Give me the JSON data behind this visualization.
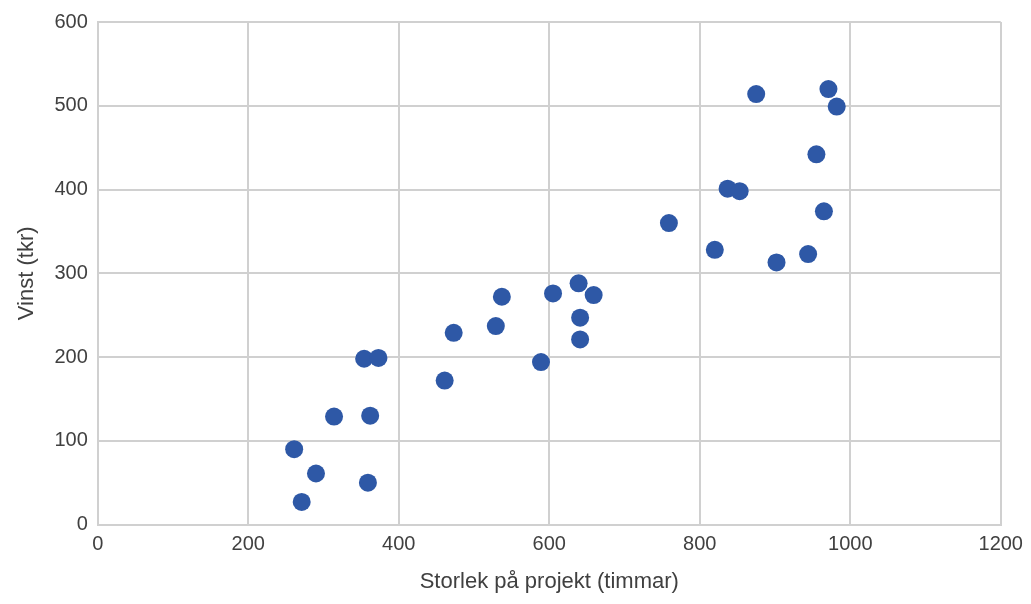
{
  "chart_data": {
    "type": "scatter",
    "xlabel": "Storlek på projekt (timmar)",
    "ylabel": "Vinst (tkr)",
    "x": [
      261,
      271,
      290,
      314,
      354,
      373,
      362,
      359,
      461,
      473,
      529,
      537,
      589,
      605,
      639,
      641,
      641,
      659,
      759,
      820,
      837,
      853,
      875,
      902,
      944,
      955,
      965,
      971,
      982
    ],
    "series": [
      {
        "color": "#2e58a6",
        "values": [
          90,
          27,
          61,
          129,
          198,
          199,
          130,
          50,
          172,
          229,
          237,
          272,
          194,
          276,
          288,
          247,
          221,
          274,
          360,
          328,
          401,
          398,
          514,
          313,
          323,
          442,
          374,
          520,
          499
        ]
      }
    ],
    "xlim": [
      0,
      1200
    ],
    "xticks": [
      0,
      200,
      400,
      600,
      800,
      1000,
      1200
    ],
    "ylim": [
      0,
      600
    ],
    "yticks": [
      0,
      100,
      200,
      300,
      400,
      500,
      600
    ],
    "grid": true,
    "legend": false,
    "marker": "circle"
  }
}
